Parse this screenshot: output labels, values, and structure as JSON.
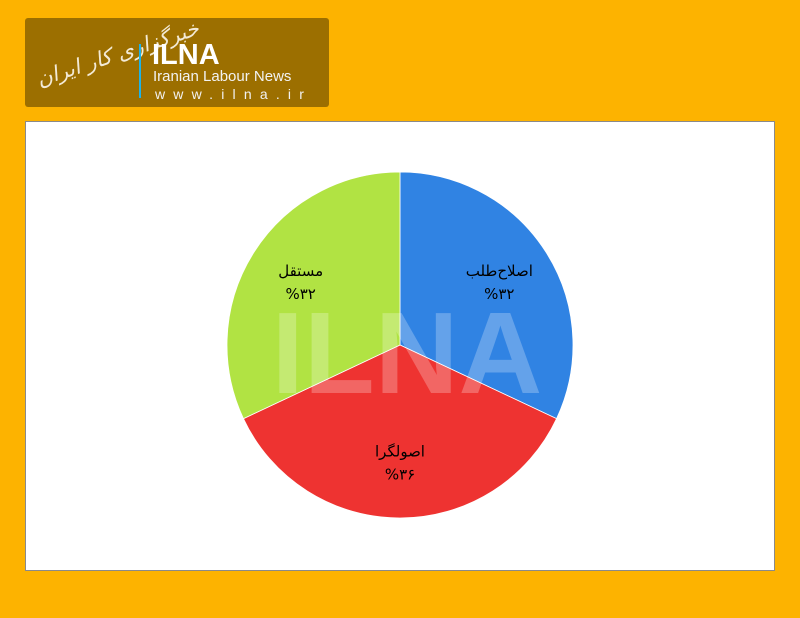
{
  "logo": {
    "script_text": "خبرگزاری کار ایران",
    "title": "ILNA",
    "subtitle": "Iranian Labour News",
    "url": "www.ilna.ir"
  },
  "watermark": "ILNA",
  "chart_data": {
    "type": "pie",
    "categories": [
      "اصلاح‌طلب",
      "اصولگرا",
      "مستقل"
    ],
    "values": [
      32,
      36,
      32
    ],
    "data_labels": [
      "%۳۲",
      "%۳۶",
      "%۳۲"
    ],
    "colors": [
      "#3083e3",
      "#ee3331",
      "#b1e343"
    ],
    "start_angle_deg": 0,
    "direction": "clockwise",
    "legend": "none"
  }
}
